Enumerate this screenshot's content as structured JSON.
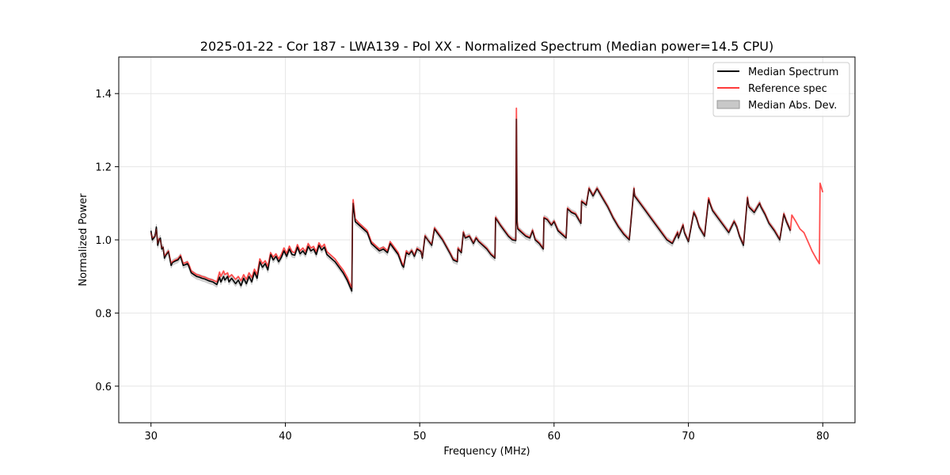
{
  "chart_data": {
    "type": "line",
    "title": "2025-01-22 - Cor 187 - LWA139 - Pol XX - Normalized Spectrum (Median power=14.5 CPU)",
    "xlabel": "Frequency (MHz)",
    "ylabel": "Normalized Power",
    "xlim": [
      27.6,
      82.4
    ],
    "ylim": [
      0.5,
      1.5
    ],
    "xticks": [
      30,
      40,
      50,
      60,
      70,
      80
    ],
    "xtick_labels": [
      "30",
      "40",
      "50",
      "60",
      "70",
      "80"
    ],
    "yticks": [
      0.6,
      0.8,
      1.0,
      1.2,
      1.4
    ],
    "ytick_labels": [
      "0.6",
      "0.8",
      "1.0",
      "1.2",
      "1.4"
    ],
    "grid": true,
    "legend_position": "top-right",
    "band_width": 0.008,
    "series": [
      {
        "name": "Median Spectrum",
        "color": "#000000",
        "x": [
          30.0,
          30.1,
          30.3,
          30.4,
          30.5,
          30.6,
          30.7,
          30.8,
          30.9,
          31.0,
          31.1,
          31.2,
          31.3,
          31.5,
          31.6,
          31.8,
          32.0,
          32.2,
          32.4,
          32.6,
          32.7,
          32.8,
          32.9,
          33.0,
          33.2,
          33.4,
          33.6,
          33.8,
          34.0,
          34.3,
          34.6,
          34.9,
          35.1,
          35.2,
          35.4,
          35.5,
          35.7,
          35.8,
          36.0,
          36.3,
          36.5,
          36.7,
          36.9,
          37.1,
          37.3,
          37.5,
          37.7,
          37.9,
          38.1,
          38.3,
          38.5,
          38.7,
          38.9,
          39.1,
          39.3,
          39.5,
          39.7,
          39.9,
          40.1,
          40.3,
          40.5,
          40.7,
          40.9,
          41.1,
          41.3,
          41.5,
          41.7,
          41.9,
          42.1,
          42.3,
          42.5,
          42.7,
          42.9,
          43.1,
          43.4,
          43.7,
          44.0,
          44.3,
          44.6,
          44.95,
          45.0,
          45.05,
          45.2,
          45.5,
          45.8,
          46.1,
          46.4,
          46.7,
          47.0,
          47.3,
          47.6,
          47.8,
          48.1,
          48.4,
          48.7,
          48.8,
          49.0,
          49.2,
          49.4,
          49.6,
          49.8,
          50.1,
          50.2,
          50.4,
          50.6,
          50.9,
          51.1,
          51.4,
          51.7,
          52.0,
          52.3,
          52.5,
          52.8,
          52.85,
          53.1,
          53.25,
          53.4,
          53.7,
          54.0,
          54.2,
          54.4,
          54.7,
          55.0,
          55.3,
          55.6,
          55.65,
          56.0,
          56.3,
          56.6,
          56.9,
          57.15,
          57.2,
          57.25,
          57.3,
          57.6,
          57.9,
          58.2,
          58.4,
          58.6,
          58.9,
          59.2,
          59.25,
          59.5,
          59.8,
          60.0,
          60.3,
          60.6,
          60.9,
          61.0,
          61.3,
          61.6,
          62.0,
          62.05,
          62.4,
          62.6,
          62.9,
          63.2,
          63.6,
          64.0,
          64.4,
          64.8,
          65.2,
          65.6,
          65.95,
          66.0,
          66.4,
          66.8,
          67.2,
          67.6,
          68.0,
          68.4,
          68.8,
          69.2,
          69.25,
          69.6,
          69.7,
          70.0,
          70.4,
          70.6,
          70.8,
          71.2,
          71.5,
          71.6,
          71.8,
          72.2,
          72.6,
          73.0,
          73.4,
          73.6,
          73.8,
          74.1,
          74.4,
          74.5,
          74.9,
          75.3,
          75.4,
          75.7,
          76.0,
          76.4,
          76.8,
          77.1,
          77.2,
          77.3,
          77.6
        ],
        "y": [
          1.025,
          1.0,
          1.01,
          1.035,
          0.985,
          1.0,
          1.005,
          0.975,
          0.98,
          0.95,
          0.958,
          0.963,
          0.968,
          0.93,
          0.938,
          0.942,
          0.945,
          0.955,
          0.93,
          0.933,
          0.935,
          0.93,
          0.92,
          0.91,
          0.905,
          0.9,
          0.898,
          0.895,
          0.893,
          0.888,
          0.885,
          0.878,
          0.898,
          0.885,
          0.9,
          0.89,
          0.9,
          0.885,
          0.895,
          0.88,
          0.89,
          0.875,
          0.895,
          0.88,
          0.9,
          0.885,
          0.912,
          0.895,
          0.94,
          0.925,
          0.935,
          0.918,
          0.96,
          0.945,
          0.955,
          0.94,
          0.952,
          0.97,
          0.955,
          0.975,
          0.96,
          0.958,
          0.98,
          0.962,
          0.97,
          0.96,
          0.982,
          0.97,
          0.975,
          0.96,
          0.985,
          0.972,
          0.98,
          0.96,
          0.95,
          0.94,
          0.925,
          0.91,
          0.89,
          0.86,
          1.06,
          1.1,
          1.05,
          1.04,
          1.03,
          1.02,
          0.99,
          0.98,
          0.97,
          0.975,
          0.965,
          0.99,
          0.975,
          0.96,
          0.93,
          0.925,
          0.965,
          0.96,
          0.97,
          0.955,
          0.975,
          0.968,
          0.95,
          1.01,
          1.0,
          0.985,
          1.03,
          1.015,
          1.0,
          0.98,
          0.96,
          0.945,
          0.94,
          0.975,
          0.965,
          1.02,
          1.005,
          1.01,
          0.99,
          1.005,
          0.995,
          0.985,
          0.975,
          0.96,
          0.95,
          1.06,
          1.04,
          1.025,
          1.01,
          1.0,
          0.998,
          1.33,
          1.05,
          1.03,
          1.02,
          1.01,
          1.005,
          1.025,
          1.0,
          0.99,
          0.975,
          1.06,
          1.055,
          1.04,
          1.05,
          1.025,
          1.015,
          1.005,
          1.085,
          1.075,
          1.07,
          1.045,
          1.105,
          1.095,
          1.14,
          1.12,
          1.14,
          1.115,
          1.09,
          1.06,
          1.035,
          1.015,
          1.0,
          1.14,
          1.12,
          1.1,
          1.08,
          1.06,
          1.04,
          1.02,
          1.0,
          0.99,
          1.02,
          1.005,
          1.04,
          1.02,
          0.995,
          1.075,
          1.06,
          1.035,
          1.01,
          1.11,
          1.1,
          1.08,
          1.06,
          1.04,
          1.02,
          1.05,
          1.035,
          1.01,
          0.985,
          1.115,
          1.09,
          1.075,
          1.1,
          1.09,
          1.07,
          1.045,
          1.025,
          1.0,
          1.07,
          1.06,
          1.05,
          1.025
        ]
      },
      {
        "name": "Reference spec",
        "color": "#ff3b3b",
        "x": [
          30.0,
          30.1,
          30.3,
          30.4,
          30.5,
          30.6,
          30.7,
          30.8,
          30.9,
          31.0,
          31.1,
          31.2,
          31.3,
          31.5,
          31.6,
          31.8,
          32.0,
          32.2,
          32.4,
          32.6,
          32.7,
          32.8,
          32.9,
          33.0,
          33.2,
          33.4,
          33.6,
          33.8,
          34.0,
          34.3,
          34.6,
          34.9,
          35.1,
          35.2,
          35.4,
          35.5,
          35.7,
          35.8,
          36.0,
          36.3,
          36.5,
          36.7,
          36.9,
          37.1,
          37.3,
          37.5,
          37.7,
          37.9,
          38.1,
          38.3,
          38.5,
          38.7,
          38.9,
          39.1,
          39.3,
          39.5,
          39.7,
          39.9,
          40.1,
          40.3,
          40.5,
          40.7,
          40.9,
          41.1,
          41.3,
          41.5,
          41.7,
          41.9,
          42.1,
          42.3,
          42.5,
          42.7,
          42.9,
          43.1,
          43.4,
          43.7,
          44.0,
          44.3,
          44.6,
          44.95,
          45.0,
          45.05,
          45.2,
          45.5,
          45.8,
          46.1,
          46.4,
          46.7,
          47.0,
          47.3,
          47.6,
          47.8,
          48.1,
          48.4,
          48.7,
          48.8,
          49.0,
          49.2,
          49.4,
          49.6,
          49.8,
          50.1,
          50.2,
          50.4,
          50.6,
          50.9,
          51.1,
          51.4,
          51.7,
          52.0,
          52.3,
          52.5,
          52.8,
          52.85,
          53.1,
          53.25,
          53.4,
          53.7,
          54.0,
          54.2,
          54.4,
          54.7,
          55.0,
          55.3,
          55.6,
          55.65,
          56.0,
          56.3,
          56.6,
          56.9,
          57.15,
          57.2,
          57.25,
          57.3,
          57.6,
          57.9,
          58.2,
          58.4,
          58.6,
          58.9,
          59.2,
          59.25,
          59.5,
          59.8,
          60.0,
          60.3,
          60.6,
          60.9,
          61.0,
          61.3,
          61.6,
          62.0,
          62.05,
          62.4,
          62.6,
          62.9,
          63.2,
          63.6,
          64.0,
          64.4,
          64.8,
          65.2,
          65.6,
          65.95,
          66.0,
          66.4,
          66.8,
          67.2,
          67.6,
          68.0,
          68.4,
          68.8,
          69.2,
          69.25,
          69.6,
          69.7,
          70.0,
          70.4,
          70.6,
          70.8,
          71.2,
          71.5,
          71.55,
          71.6,
          71.8,
          72.2,
          72.6,
          73.0,
          73.4,
          73.6,
          73.8,
          74.1,
          74.4,
          74.5,
          74.9,
          75.3,
          75.4,
          75.7,
          76.0,
          76.4,
          76.8,
          77.1,
          77.2,
          77.3,
          77.6,
          77.7,
          78.0,
          78.3,
          78.6,
          78.9,
          79.2,
          79.5,
          79.75,
          79.8,
          80.0
        ],
        "y": [
          1.02,
          1.005,
          1.01,
          1.03,
          0.99,
          1.003,
          1.0,
          0.978,
          0.98,
          0.955,
          0.96,
          0.965,
          0.97,
          0.935,
          0.94,
          0.945,
          0.948,
          0.958,
          0.935,
          0.938,
          0.94,
          0.935,
          0.925,
          0.915,
          0.91,
          0.905,
          0.903,
          0.9,
          0.898,
          0.893,
          0.89,
          0.885,
          0.912,
          0.9,
          0.915,
          0.905,
          0.91,
          0.898,
          0.905,
          0.892,
          0.9,
          0.888,
          0.905,
          0.892,
          0.91,
          0.897,
          0.92,
          0.905,
          0.948,
          0.935,
          0.943,
          0.928,
          0.965,
          0.953,
          0.962,
          0.948,
          0.96,
          0.978,
          0.963,
          0.983,
          0.968,
          0.965,
          0.987,
          0.97,
          0.978,
          0.968,
          0.99,
          0.978,
          0.982,
          0.968,
          0.992,
          0.98,
          0.988,
          0.968,
          0.958,
          0.948,
          0.932,
          0.918,
          0.898,
          0.868,
          1.07,
          1.11,
          1.058,
          1.045,
          1.035,
          1.025,
          0.995,
          0.985,
          0.975,
          0.98,
          0.97,
          0.995,
          0.98,
          0.965,
          0.935,
          0.93,
          0.97,
          0.962,
          0.972,
          0.958,
          0.977,
          0.97,
          0.952,
          1.012,
          1.0,
          0.988,
          1.033,
          1.018,
          1.002,
          0.982,
          0.962,
          0.948,
          0.942,
          0.978,
          0.967,
          1.022,
          1.007,
          1.012,
          0.992,
          1.007,
          0.997,
          0.987,
          0.977,
          0.962,
          0.952,
          1.062,
          1.042,
          1.027,
          1.012,
          1.002,
          1.0,
          1.36,
          1.055,
          1.033,
          1.022,
          1.012,
          1.007,
          1.027,
          1.002,
          0.992,
          0.977,
          1.062,
          1.057,
          1.042,
          1.052,
          1.027,
          1.017,
          1.007,
          1.087,
          1.077,
          1.072,
          1.047,
          1.107,
          1.097,
          1.142,
          1.122,
          1.142,
          1.117,
          1.092,
          1.062,
          1.037,
          1.017,
          1.002,
          1.142,
          1.122,
          1.102,
          1.082,
          1.062,
          1.042,
          1.022,
          1.002,
          0.992,
          1.022,
          1.007,
          1.042,
          1.022,
          0.997,
          1.077,
          1.062,
          1.037,
          1.012,
          1.115,
          1.112,
          1.102,
          1.082,
          1.062,
          1.042,
          1.022,
          1.052,
          1.037,
          1.012,
          0.987,
          1.117,
          1.092,
          1.077,
          1.102,
          1.092,
          1.072,
          1.047,
          1.027,
          1.002,
          1.072,
          1.062,
          1.052,
          1.027,
          1.068,
          1.05,
          1.03,
          1.02,
          0.995,
          0.97,
          0.95,
          0.935,
          1.155,
          1.13
        ]
      }
    ],
    "band": {
      "name": "Median Abs. Dev.",
      "color": "#c8c8c8"
    }
  }
}
